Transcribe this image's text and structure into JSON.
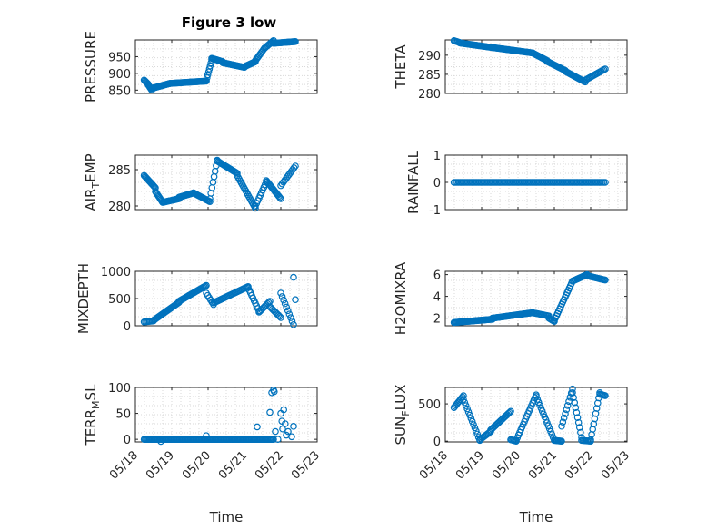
{
  "title": "Figure 3 low",
  "style": {
    "marker_color": "#0072BD",
    "axis_color": "#262626",
    "grid_color": "#d9d9d9",
    "background": "#ffffff"
  },
  "chart_data": [
    {
      "id": "pressure",
      "type": "scatter",
      "title": "Figure 3 low",
      "ylabel": "PRESSURE",
      "ylim": [
        840,
        1000
      ],
      "yticks": [
        {
          "v": 850,
          "label": "850"
        },
        {
          "v": 900,
          "label": "900"
        },
        {
          "v": 950,
          "label": "950"
        }
      ],
      "xlim": [
        0,
        5
      ],
      "xlabel": "",
      "grid": true,
      "show_xticklabels": false,
      "segments": [
        {
          "x0": 0.24,
          "x1": 0.35,
          "n": 6,
          "v": [
            880,
            868
          ]
        },
        {
          "x0": 0.35,
          "x1": 0.45,
          "n": 6,
          "v": [
            866,
            850
          ]
        },
        {
          "x0": 0.45,
          "x1": 0.95,
          "n": 28,
          "v": [
            855,
            870
          ]
        },
        {
          "x0": 0.95,
          "x1": 1.95,
          "n": 40,
          "v": [
            870,
            877
          ]
        },
        {
          "x0": 1.95,
          "x1": 2.1,
          "n": 8,
          "v": [
            878,
            940
          ]
        },
        {
          "x0": 2.1,
          "x1": 2.4,
          "n": 14,
          "v": [
            945,
            935
          ]
        },
        {
          "x0": 2.4,
          "x1": 3.0,
          "n": 26,
          "v": [
            932,
            918
          ]
        },
        {
          "x0": 3.0,
          "x1": 3.3,
          "n": 14,
          "v": [
            920,
            935
          ]
        },
        {
          "x0": 3.3,
          "x1": 3.55,
          "n": 10,
          "v": [
            938,
            975
          ]
        },
        {
          "x0": 3.55,
          "x1": 3.8,
          "n": 10,
          "v": [
            975,
            998
          ]
        },
        {
          "x0": 3.8,
          "x1": 4.4,
          "n": 24,
          "v": [
            990,
            995
          ]
        }
      ]
    },
    {
      "id": "theta",
      "type": "scatter",
      "ylabel": "THETA",
      "ylim": [
        280,
        294
      ],
      "yticks": [
        {
          "v": 280,
          "label": "280"
        },
        {
          "v": 285,
          "label": "285"
        },
        {
          "v": 290,
          "label": "290"
        }
      ],
      "xlim": [
        0,
        5
      ],
      "xlabel": "",
      "grid": true,
      "show_xticklabels": false,
      "segments": [
        {
          "x0": 0.24,
          "x1": 0.4,
          "n": 6,
          "v": [
            293.8,
            293.3
          ]
        },
        {
          "x0": 0.4,
          "x1": 1.3,
          "n": 34,
          "v": [
            293.2,
            292.0
          ]
        },
        {
          "x0": 1.3,
          "x1": 2.4,
          "n": 40,
          "v": [
            292.0,
            290.6
          ]
        },
        {
          "x0": 2.4,
          "x1": 2.8,
          "n": 14,
          "v": [
            290.6,
            288.6
          ]
        },
        {
          "x0": 2.8,
          "x1": 3.3,
          "n": 18,
          "v": [
            288.4,
            286.0
          ]
        },
        {
          "x0": 3.3,
          "x1": 3.85,
          "n": 20,
          "v": [
            285.8,
            283.0
          ]
        },
        {
          "x0": 3.85,
          "x1": 4.4,
          "n": 16,
          "v": [
            283.5,
            286.4
          ]
        }
      ]
    },
    {
      "id": "air_temp",
      "type": "scatter",
      "ylabel": "AIR_TEMP",
      "ylim": [
        279.5,
        287
      ],
      "yticks": [
        {
          "v": 280,
          "label": "280"
        },
        {
          "v": 285,
          "label": "285"
        }
      ],
      "xlim": [
        0,
        5
      ],
      "xlabel": "",
      "grid": true,
      "show_xticklabels": false,
      "segments": [
        {
          "x0": 0.24,
          "x1": 0.55,
          "n": 14,
          "v": [
            284.2,
            282.5
          ]
        },
        {
          "x0": 0.55,
          "x1": 0.75,
          "n": 10,
          "v": [
            282.0,
            280.5
          ]
        },
        {
          "x0": 0.75,
          "x1": 1.2,
          "n": 18,
          "v": [
            280.5,
            281.0
          ]
        },
        {
          "x0": 1.2,
          "x1": 1.6,
          "n": 16,
          "v": [
            281.2,
            281.8
          ]
        },
        {
          "x0": 1.6,
          "x1": 2.05,
          "n": 16,
          "v": [
            281.8,
            280.6
          ]
        },
        {
          "x0": 2.05,
          "x1": 2.25,
          "n": 8,
          "v": [
            281.0,
            286.3
          ]
        },
        {
          "x0": 2.25,
          "x1": 2.8,
          "n": 20,
          "v": [
            286.2,
            284.5
          ]
        },
        {
          "x0": 2.8,
          "x1": 3.3,
          "n": 18,
          "v": [
            284.2,
            279.7
          ]
        },
        {
          "x0": 3.3,
          "x1": 3.6,
          "n": 10,
          "v": [
            280.0,
            283.3
          ]
        },
        {
          "x0": 3.6,
          "x1": 4.0,
          "n": 16,
          "v": [
            283.5,
            281.0
          ]
        },
        {
          "x0": 4.0,
          "x1": 4.4,
          "n": 12,
          "v": [
            282.8,
            285.5
          ]
        }
      ]
    },
    {
      "id": "rainfall",
      "type": "scatter",
      "ylabel": "RAINFALL",
      "ylim": [
        -1,
        1
      ],
      "yticks": [
        {
          "v": -1,
          "label": "-1"
        },
        {
          "v": 0,
          "label": "0"
        },
        {
          "v": 1,
          "label": "1"
        }
      ],
      "xlim": [
        0,
        5
      ],
      "xlabel": "",
      "grid": true,
      "show_xticklabels": false,
      "segments": [
        {
          "x0": 0.24,
          "x1": 4.4,
          "n": 100,
          "v": [
            0,
            0
          ]
        }
      ]
    },
    {
      "id": "mixdepth",
      "type": "scatter",
      "ylabel": "MIXDEPTH",
      "ylim": [
        0,
        1000
      ],
      "yticks": [
        {
          "v": 0,
          "label": "0"
        },
        {
          "v": 500,
          "label": "500"
        },
        {
          "v": 1000,
          "label": "1000"
        }
      ],
      "xlim": [
        0,
        5
      ],
      "xlabel": "",
      "grid": true,
      "show_xticklabels": false,
      "segments": [
        {
          "x0": 0.24,
          "x1": 0.5,
          "n": 8,
          "v": [
            70,
            90
          ]
        },
        {
          "x0": 0.5,
          "x1": 1.2,
          "n": 26,
          "v": [
            100,
            430
          ]
        },
        {
          "x0": 1.2,
          "x1": 1.95,
          "n": 26,
          "v": [
            450,
            740
          ]
        },
        {
          "x0": 1.95,
          "x1": 2.15,
          "n": 6,
          "v": [
            600,
            390
          ]
        },
        {
          "x0": 2.15,
          "x1": 3.1,
          "n": 30,
          "v": [
            420,
            720
          ]
        },
        {
          "x0": 3.1,
          "x1": 3.4,
          "n": 10,
          "v": [
            700,
            270
          ]
        },
        {
          "x0": 3.4,
          "x1": 3.7,
          "n": 10,
          "v": [
            250,
            450
          ]
        },
        {
          "x0": 3.7,
          "x1": 4.0,
          "n": 10,
          "v": [
            350,
            150
          ]
        },
        {
          "x0": 4.0,
          "x1": 4.35,
          "n": 10,
          "v": [
            600,
            20
          ]
        },
        {
          "x0": 4.35,
          "x1": 4.4,
          "n": 2,
          "v": [
            890,
            480
          ]
        }
      ]
    },
    {
      "id": "h2omixra",
      "type": "scatter",
      "ylabel": "H2OMIXRA",
      "ylim": [
        1.3,
        6.3
      ],
      "yticks": [
        {
          "v": 2,
          "label": "2"
        },
        {
          "v": 4,
          "label": "4"
        },
        {
          "v": 6,
          "label": "6"
        }
      ],
      "xlim": [
        0,
        5
      ],
      "xlabel": "",
      "grid": true,
      "show_xticklabels": false,
      "segments": [
        {
          "x0": 0.24,
          "x1": 1.3,
          "n": 40,
          "v": [
            1.6,
            1.9
          ]
        },
        {
          "x0": 1.3,
          "x1": 2.4,
          "n": 40,
          "v": [
            2.0,
            2.5
          ]
        },
        {
          "x0": 2.4,
          "x1": 2.85,
          "n": 14,
          "v": [
            2.5,
            2.2
          ]
        },
        {
          "x0": 2.85,
          "x1": 3.0,
          "n": 6,
          "v": [
            2.0,
            1.7
          ]
        },
        {
          "x0": 3.0,
          "x1": 3.5,
          "n": 18,
          "v": [
            1.8,
            5.4
          ]
        },
        {
          "x0": 3.5,
          "x1": 3.9,
          "n": 14,
          "v": [
            5.4,
            6.0
          ]
        },
        {
          "x0": 3.9,
          "x1": 4.4,
          "n": 18,
          "v": [
            5.9,
            5.5
          ]
        }
      ]
    },
    {
      "id": "terr_msl",
      "type": "scatter",
      "ylabel": "TERR_MSL",
      "ylim": [
        -5,
        100
      ],
      "yticks": [
        {
          "v": 0,
          "label": "0"
        },
        {
          "v": 50,
          "label": "50"
        },
        {
          "v": 100,
          "label": "100"
        }
      ],
      "xlim": [
        0,
        5
      ],
      "xlabel": "Time",
      "grid": true,
      "show_xticklabels": true,
      "xticks": [
        {
          "v": 0,
          "label": "05/18"
        },
        {
          "v": 1,
          "label": "05/19"
        },
        {
          "v": 2,
          "label": "05/20"
        },
        {
          "v": 3,
          "label": "05/21"
        },
        {
          "v": 4,
          "label": "05/22"
        },
        {
          "v": 5,
          "label": "05/23"
        }
      ],
      "segments": [
        {
          "x0": 0.24,
          "x1": 3.8,
          "n": 120,
          "v": [
            0,
            0
          ]
        }
      ],
      "extra_points": [
        [
          0.7,
          -4
        ],
        [
          1.95,
          7
        ],
        [
          2.7,
          0
        ],
        [
          3.35,
          24
        ],
        [
          3.75,
          90
        ],
        [
          3.8,
          95
        ],
        [
          3.82,
          92
        ],
        [
          3.7,
          52
        ],
        [
          3.85,
          15
        ],
        [
          3.92,
          0
        ],
        [
          4.0,
          50
        ],
        [
          4.03,
          35
        ],
        [
          4.08,
          57
        ],
        [
          4.05,
          20
        ],
        [
          4.12,
          30
        ],
        [
          4.15,
          8
        ],
        [
          4.2,
          15
        ],
        [
          4.3,
          5
        ],
        [
          4.35,
          25
        ]
      ]
    },
    {
      "id": "sun_flux",
      "type": "scatter",
      "ylabel": "SUN_FLUX",
      "ylim": [
        -10,
        720
      ],
      "yticks": [
        {
          "v": 0,
          "label": "0"
        },
        {
          "v": 500,
          "label": "500"
        }
      ],
      "xlim": [
        0,
        5
      ],
      "xlabel": "Time",
      "grid": true,
      "show_xticklabels": true,
      "xticks": [
        {
          "v": 0,
          "label": "05/18"
        },
        {
          "v": 1,
          "label": "05/19"
        },
        {
          "v": 2,
          "label": "05/20"
        },
        {
          "v": 3,
          "label": "05/21"
        },
        {
          "v": 4,
          "label": "05/22"
        },
        {
          "v": 5,
          "label": "05/23"
        }
      ],
      "segments": [
        {
          "x0": 0.24,
          "x1": 0.5,
          "n": 10,
          "v": [
            450,
            610
          ]
        },
        {
          "x0": 0.5,
          "x1": 0.95,
          "n": 14,
          "v": [
            560,
            10
          ]
        },
        {
          "x0": 0.95,
          "x1": 1.25,
          "n": 10,
          "v": [
            20,
            130
          ]
        },
        {
          "x0": 1.25,
          "x1": 1.8,
          "n": 18,
          "v": [
            150,
            400
          ]
        },
        {
          "x0": 1.8,
          "x1": 1.95,
          "n": 6,
          "v": [
            20,
            0
          ]
        },
        {
          "x0": 1.95,
          "x1": 2.5,
          "n": 18,
          "v": [
            10,
            620
          ]
        },
        {
          "x0": 2.5,
          "x1": 3.0,
          "n": 16,
          "v": [
            600,
            10
          ]
        },
        {
          "x0": 3.0,
          "x1": 3.2,
          "n": 8,
          "v": [
            10,
            0
          ]
        },
        {
          "x0": 3.2,
          "x1": 3.5,
          "n": 10,
          "v": [
            200,
            700
          ]
        },
        {
          "x0": 3.5,
          "x1": 3.75,
          "n": 10,
          "v": [
            650,
            50
          ]
        },
        {
          "x0": 3.75,
          "x1": 4.0,
          "n": 8,
          "v": [
            10,
            0
          ]
        },
        {
          "x0": 4.0,
          "x1": 4.25,
          "n": 10,
          "v": [
            20,
            650
          ]
        },
        {
          "x0": 4.25,
          "x1": 4.4,
          "n": 6,
          "v": [
            630,
            610
          ]
        }
      ]
    }
  ]
}
